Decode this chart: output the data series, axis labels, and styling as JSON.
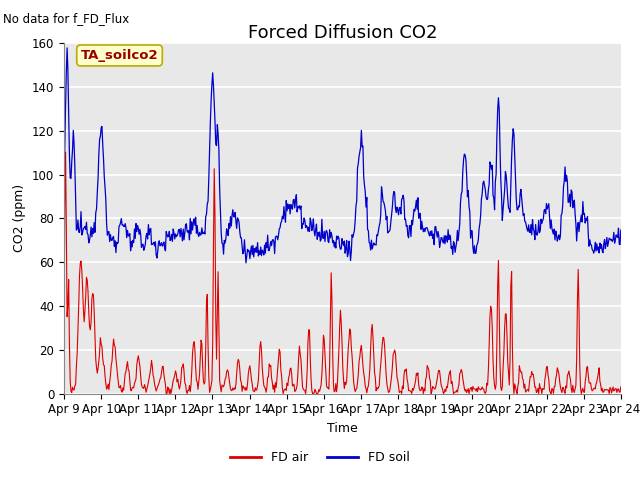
{
  "title": "Forced Diffusion CO2",
  "top_left_text": "No data for f_FD_Flux",
  "ylabel": "CO2 (ppm)",
  "xlabel": "Time",
  "ylim": [
    0,
    160
  ],
  "x_tick_labels": [
    "Apr 9",
    "Apr 10",
    "Apr 11",
    "Apr 12",
    "Apr 13",
    "Apr 14",
    "Apr 15",
    "Apr 16",
    "Apr 17",
    "Apr 18",
    "Apr 19",
    "Apr 20",
    "Apr 21",
    "Apr 22",
    "Apr 23",
    "Apr 24"
  ],
  "annotation_box": "TA_soilco2",
  "annotation_box_facecolor": "#FFFFCC",
  "annotation_box_edgecolor": "#BBAA00",
  "red_color": "#DD0000",
  "blue_color": "#0000CC",
  "legend_fd_air": "FD air",
  "legend_fd_soil": "FD soil",
  "background_color": "#E8E8E8",
  "grid_color": "#FFFFFF",
  "title_fontsize": 13,
  "label_fontsize": 9,
  "tick_fontsize": 8.5
}
